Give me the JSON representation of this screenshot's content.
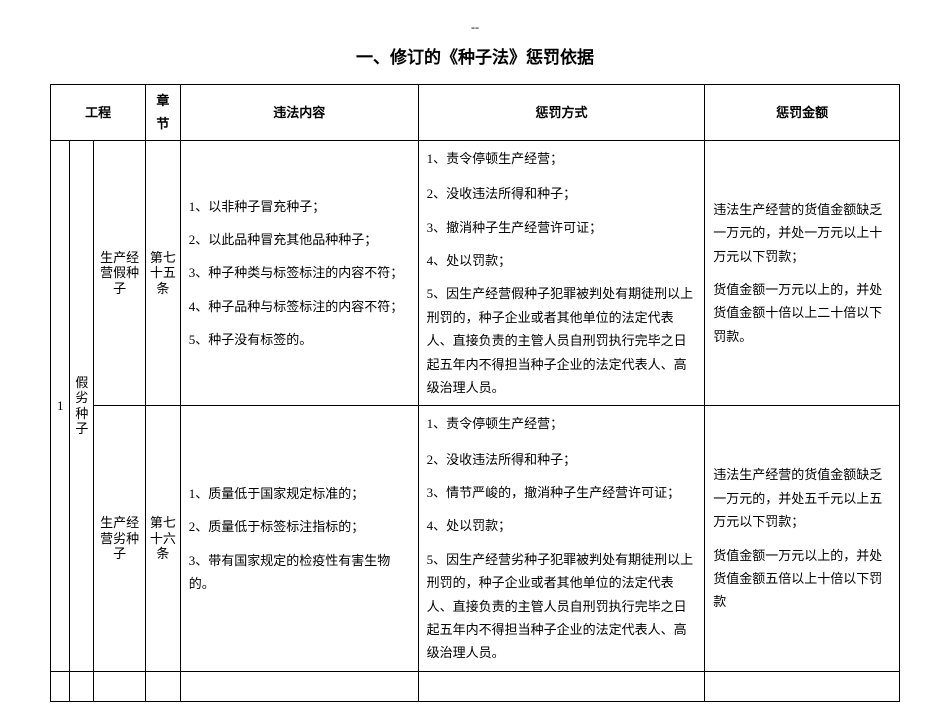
{
  "dash": "--",
  "title": "一、修订的《种子法》惩罚依据",
  "headers": {
    "project": "工程",
    "chapter": "章节",
    "violation": "违法内容",
    "method": "惩罚方式",
    "amount": "惩罚金额"
  },
  "row_index": "1",
  "category": "假劣种子",
  "rows": [
    {
      "sub": "生产经营假种子",
      "chapter": "第七十五条",
      "violation": [
        "1、以非种子冒充种子；",
        "2、以此品种冒充其他品种种子；",
        "3、种子种类与标签标注的内容不符；",
        "4、种子品种与标签标注的内容不符；",
        "5、种子没有标签的。"
      ],
      "method_top": "1、责令停顿生产经营；",
      "method_rest": [
        "2、没收违法所得和种子；",
        "3、撤消种子生产经营许可证；",
        "4、处以罚款；",
        "5、因生产经营假种子犯罪被判处有期徒刑以上刑罚的，种子企业或者其他单位的法定代表人、直接负责的主管人员自刑罚执行完毕之日起五年内不得担当种子企业的法定代表人、高级治理人员。"
      ],
      "amount": [
        "违法生产经营的货值金额缺乏一万元的，并处一万元以上十万元以下罚款；",
        "货值金额一万元以上的，并处货值金额十倍以上二十倍以下罚款。"
      ]
    },
    {
      "sub": "生产经营劣种子",
      "chapter": "第七十六条",
      "violation": [
        "1、质量低于国家规定标准的；",
        "2、质量低于标签标注指标的；",
        "3、带有国家规定的检疫性有害生物的。"
      ],
      "method_top": "1、责令停顿生产经营；",
      "method_rest": [
        "2、没收违法所得和种子；",
        "3、情节严峻的，撤消种子生产经营许可证；",
        "4、处以罚款；",
        "5、因生产经营劣种子犯罪被判处有期徒刑以上刑罚的，种子企业或者其他单位的法定代表人、直接负责的主管人员自刑罚执行完毕之日起五年内不得担当种子企业的法定代表人、高级治理人员。"
      ],
      "amount": [
        "违法生产经营的货值金额缺乏一万元的，并处五千元以上五万元以下罚款；",
        "货值金额一万元以上的，并处货值金额五倍以上十倍以下罚款"
      ]
    }
  ]
}
